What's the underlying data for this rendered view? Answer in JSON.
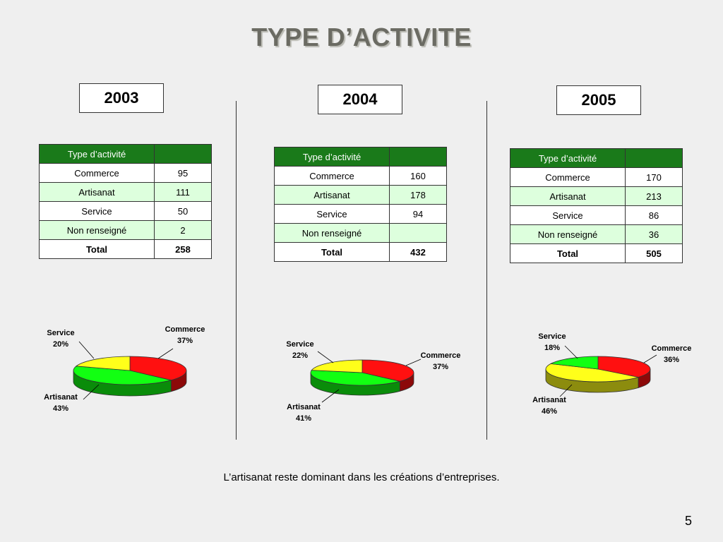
{
  "title": "TYPE D’ACTIVITE",
  "caption": "L’artisanat reste dominant dans les créations d’entreprises.",
  "page_number": "5",
  "colors": {
    "commerce": "#ff1010",
    "artisanat_green": "#12ff12",
    "artisanat_olive": "#8c8c00",
    "service_yellow": "#ffff1a",
    "service_green": "#12ff12",
    "header_green": "#1a7a1a"
  },
  "years": [
    {
      "year": "2003",
      "table": {
        "header": [
          "Type d’activité",
          ""
        ],
        "rows": [
          {
            "label": "Commerce",
            "value": "95"
          },
          {
            "label": "Artisanat",
            "value": "111"
          },
          {
            "label": "Service",
            "value": "50"
          },
          {
            "label": "Non renseigné",
            "value": "2"
          }
        ],
        "total": {
          "label": "Total",
          "value": "258"
        }
      }
    },
    {
      "year": "2004",
      "table": {
        "header": [
          "Type d’activité",
          ""
        ],
        "rows": [
          {
            "label": "Commerce",
            "value": "160"
          },
          {
            "label": "Artisanat",
            "value": "178"
          },
          {
            "label": "Service",
            "value": "94"
          },
          {
            "label": "Non renseigné",
            "value": ""
          }
        ],
        "total": {
          "label": "Total",
          "value": "432"
        }
      }
    },
    {
      "year": "2005",
      "table": {
        "header": [
          "Type d’activité",
          ""
        ],
        "rows": [
          {
            "label": "Commerce",
            "value": "170"
          },
          {
            "label": "Artisanat",
            "value": "213"
          },
          {
            "label": "Service",
            "value": "86"
          },
          {
            "label": "Non renseigné",
            "value": "36"
          }
        ],
        "total": {
          "label": "Total",
          "value": "505"
        }
      }
    }
  ],
  "chart_data": [
    {
      "type": "pie",
      "year": "2003",
      "categories": [
        "Commerce",
        "Artisanat",
        "Service"
      ],
      "values": [
        37,
        43,
        20
      ],
      "labels": [
        {
          "name": "Commerce",
          "pct": "37%"
        },
        {
          "name": "Artisanat",
          "pct": "43%"
        },
        {
          "name": "Service",
          "pct": "20%"
        }
      ],
      "colors": [
        "#ff1010",
        "#12ff12",
        "#ffff1a"
      ]
    },
    {
      "type": "pie",
      "year": "2004",
      "categories": [
        "Commerce",
        "Artisanat",
        "Service"
      ],
      "values": [
        37,
        41,
        22
      ],
      "labels": [
        {
          "name": "Commerce",
          "pct": "37%"
        },
        {
          "name": "Artisanat",
          "pct": "41%"
        },
        {
          "name": "Service",
          "pct": "22%"
        }
      ],
      "colors": [
        "#ff1010",
        "#12ff12",
        "#ffff1a"
      ]
    },
    {
      "type": "pie",
      "year": "2005",
      "categories": [
        "Commerce",
        "Artisanat",
        "Service"
      ],
      "values": [
        36,
        46,
        18
      ],
      "labels": [
        {
          "name": "Commerce",
          "pct": "36%"
        },
        {
          "name": "Artisanat",
          "pct": "46%"
        },
        {
          "name": "Service",
          "pct": "18%"
        }
      ],
      "colors": [
        "#ff1010",
        "#ffff1a",
        "#12ff12"
      ]
    }
  ]
}
